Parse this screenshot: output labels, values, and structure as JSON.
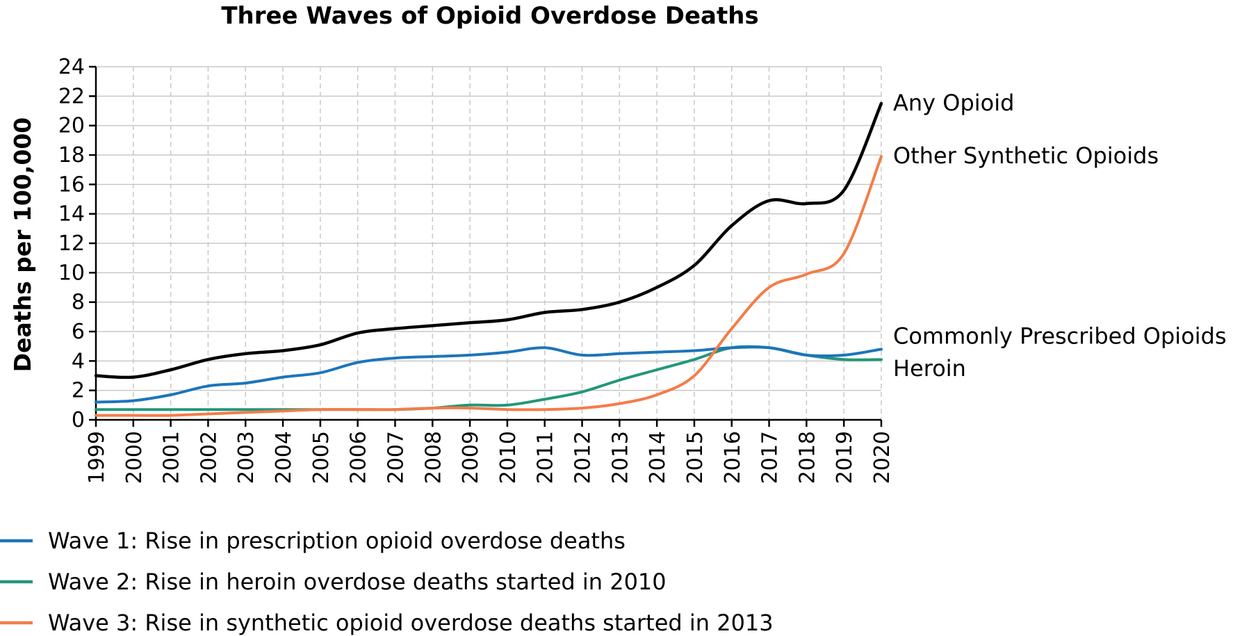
{
  "chart_data": {
    "type": "line",
    "title": "Three Waves of Opioid Overdose Deaths",
    "xlabel": "",
    "ylabel": "Deaths per 100,000",
    "x": [
      1999,
      2000,
      2001,
      2002,
      2003,
      2004,
      2005,
      2006,
      2007,
      2008,
      2009,
      2010,
      2011,
      2012,
      2013,
      2014,
      2015,
      2016,
      2017,
      2018,
      2019,
      2020
    ],
    "ylim": [
      0,
      24
    ],
    "yticks": [
      0,
      2,
      4,
      6,
      8,
      10,
      12,
      14,
      16,
      18,
      20,
      22,
      24
    ],
    "grid": true,
    "series": [
      {
        "name": "Any Opioid",
        "color": "#000000",
        "values": [
          3.0,
          2.9,
          3.4,
          4.1,
          4.5,
          4.7,
          5.1,
          5.9,
          6.2,
          6.4,
          6.6,
          6.8,
          7.3,
          7.5,
          8.0,
          9.0,
          10.5,
          13.2,
          14.9,
          14.7,
          15.6,
          21.5
        ]
      },
      {
        "name": "Other Synthetic Opioids",
        "color": "#f47c48",
        "values": [
          0.3,
          0.3,
          0.3,
          0.4,
          0.5,
          0.6,
          0.7,
          0.7,
          0.7,
          0.8,
          0.8,
          0.7,
          0.7,
          0.8,
          1.1,
          1.7,
          3.0,
          6.2,
          9.0,
          9.9,
          11.3,
          17.9
        ]
      },
      {
        "name": "Commonly Prescribed Opioids",
        "color": "#1b75bc",
        "values": [
          1.2,
          1.3,
          1.7,
          2.3,
          2.5,
          2.9,
          3.2,
          3.9,
          4.2,
          4.3,
          4.4,
          4.6,
          4.9,
          4.4,
          4.5,
          4.6,
          4.7,
          4.9,
          4.9,
          4.4,
          4.4,
          4.8
        ]
      },
      {
        "name": "Heroin",
        "color": "#22977a",
        "values": [
          0.7,
          0.7,
          0.7,
          0.7,
          0.7,
          0.7,
          0.7,
          0.7,
          0.7,
          0.8,
          1.0,
          1.0,
          1.4,
          1.9,
          2.7,
          3.4,
          4.1,
          4.9,
          4.9,
          4.4,
          4.1,
          4.1
        ]
      }
    ],
    "legend": [
      {
        "label": "Wave 1: Rise in prescription opioid overdose deaths",
        "color": "#1b75bc"
      },
      {
        "label": "Wave 2: Rise in heroin overdose deaths started in 2010",
        "color": "#22977a"
      },
      {
        "label": "Wave 3: Rise in synthetic opioid overdose deaths started in 2013",
        "color": "#f47c48"
      }
    ],
    "legend_position": "bottom-left"
  }
}
